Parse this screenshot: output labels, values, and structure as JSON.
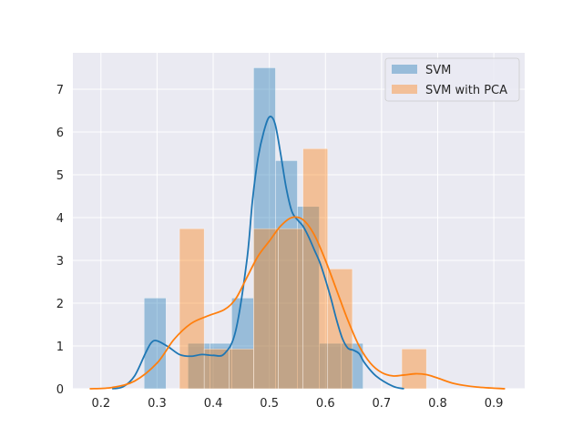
{
  "chart_data": {
    "type": "bar",
    "title": "",
    "xlabel": "",
    "ylabel": "",
    "xlim": [
      0.15,
      0.955
    ],
    "ylim": [
      0,
      7.85
    ],
    "xticks": [
      0.2,
      0.3,
      0.4,
      0.5,
      0.6,
      0.7,
      0.8,
      0.9
    ],
    "xtick_labels": [
      "0.2",
      "0.3",
      "0.4",
      "0.5",
      "0.6",
      "0.7",
      "0.8",
      "0.9"
    ],
    "yticks": [
      0,
      1,
      2,
      3,
      4,
      5,
      6,
      7
    ],
    "ytick_labels": [
      "0",
      "1",
      "2",
      "3",
      "4",
      "5",
      "6",
      "7"
    ],
    "grid": true,
    "legend_position": "upper-right",
    "series": [
      {
        "name": "SVM",
        "color": "#1f77b4",
        "bins": [
          {
            "x0": 0.277,
            "x1": 0.316,
            "height": 2.12
          },
          {
            "x0": 0.316,
            "x1": 0.355,
            "height": 0.0
          },
          {
            "x0": 0.355,
            "x1": 0.394,
            "height": 1.06
          },
          {
            "x0": 0.394,
            "x1": 0.433,
            "height": 1.06
          },
          {
            "x0": 0.433,
            "x1": 0.472,
            "height": 2.12
          },
          {
            "x0": 0.472,
            "x1": 0.511,
            "height": 7.5
          },
          {
            "x0": 0.511,
            "x1": 0.55,
            "height": 5.33
          },
          {
            "x0": 0.55,
            "x1": 0.589,
            "height": 4.26
          },
          {
            "x0": 0.589,
            "x1": 0.628,
            "height": 1.06
          },
          {
            "x0": 0.628,
            "x1": 0.667,
            "height": 1.06
          }
        ],
        "kde": [
          [
            0.22,
            0.0
          ],
          [
            0.24,
            0.05
          ],
          [
            0.26,
            0.3
          ],
          [
            0.28,
            0.85
          ],
          [
            0.29,
            1.08
          ],
          [
            0.3,
            1.12
          ],
          [
            0.32,
            0.98
          ],
          [
            0.34,
            0.8
          ],
          [
            0.36,
            0.76
          ],
          [
            0.38,
            0.8
          ],
          [
            0.4,
            0.78
          ],
          [
            0.42,
            0.82
          ],
          [
            0.44,
            1.35
          ],
          [
            0.46,
            3.0
          ],
          [
            0.47,
            4.4
          ],
          [
            0.48,
            5.4
          ],
          [
            0.49,
            6.0
          ],
          [
            0.5,
            6.35
          ],
          [
            0.51,
            6.2
          ],
          [
            0.52,
            5.5
          ],
          [
            0.53,
            4.7
          ],
          [
            0.54,
            4.15
          ],
          [
            0.55,
            3.95
          ],
          [
            0.56,
            3.8
          ],
          [
            0.57,
            3.55
          ],
          [
            0.58,
            3.25
          ],
          [
            0.59,
            2.95
          ],
          [
            0.6,
            2.55
          ],
          [
            0.61,
            2.1
          ],
          [
            0.62,
            1.6
          ],
          [
            0.63,
            1.18
          ],
          [
            0.64,
            0.95
          ],
          [
            0.65,
            0.9
          ],
          [
            0.66,
            0.82
          ],
          [
            0.67,
            0.6
          ],
          [
            0.69,
            0.3
          ],
          [
            0.72,
            0.06
          ],
          [
            0.74,
            0.0
          ]
        ]
      },
      {
        "name": "SVM with PCA",
        "color": "#ff7f0e",
        "bins": [
          {
            "x0": 0.34,
            "x1": 0.384,
            "height": 3.74
          },
          {
            "x0": 0.384,
            "x1": 0.428,
            "height": 0.93
          },
          {
            "x0": 0.428,
            "x1": 0.472,
            "height": 0.93
          },
          {
            "x0": 0.472,
            "x1": 0.516,
            "height": 3.74
          },
          {
            "x0": 0.516,
            "x1": 0.56,
            "height": 3.74
          },
          {
            "x0": 0.56,
            "x1": 0.604,
            "height": 5.61
          },
          {
            "x0": 0.604,
            "x1": 0.648,
            "height": 2.8
          },
          {
            "x0": 0.648,
            "x1": 0.692,
            "height": 0.0
          },
          {
            "x0": 0.692,
            "x1": 0.736,
            "height": 0.0
          },
          {
            "x0": 0.736,
            "x1": 0.78,
            "height": 0.93
          }
        ],
        "kde": [
          [
            0.18,
            0.0
          ],
          [
            0.22,
            0.03
          ],
          [
            0.26,
            0.18
          ],
          [
            0.3,
            0.6
          ],
          [
            0.33,
            1.15
          ],
          [
            0.36,
            1.52
          ],
          [
            0.39,
            1.7
          ],
          [
            0.42,
            1.85
          ],
          [
            0.44,
            2.1
          ],
          [
            0.46,
            2.6
          ],
          [
            0.48,
            3.1
          ],
          [
            0.5,
            3.45
          ],
          [
            0.52,
            3.8
          ],
          [
            0.54,
            4.0
          ],
          [
            0.56,
            3.95
          ],
          [
            0.58,
            3.6
          ],
          [
            0.6,
            3.0
          ],
          [
            0.62,
            2.3
          ],
          [
            0.64,
            1.6
          ],
          [
            0.66,
            1.0
          ],
          [
            0.68,
            0.6
          ],
          [
            0.7,
            0.38
          ],
          [
            0.72,
            0.3
          ],
          [
            0.74,
            0.32
          ],
          [
            0.76,
            0.35
          ],
          [
            0.78,
            0.33
          ],
          [
            0.8,
            0.25
          ],
          [
            0.83,
            0.12
          ],
          [
            0.87,
            0.04
          ],
          [
            0.92,
            0.0
          ]
        ]
      }
    ]
  }
}
